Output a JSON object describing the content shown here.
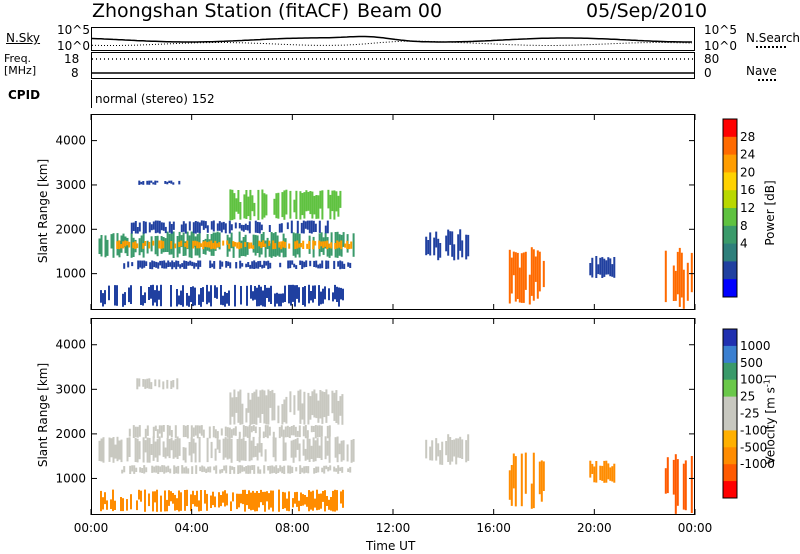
{
  "header": {
    "station": "Zhongshan Station (fitACF)",
    "beam": "Beam 00",
    "date": "05/Sep/2010"
  },
  "top_panel": {
    "left_label": "N.Sky",
    "right_label": "N.Search",
    "y_ticks_left": [
      "10^5",
      "10^0"
    ],
    "y_ticks_right": [
      "10^5",
      "10^0"
    ]
  },
  "freq_panel": {
    "left_label_line1": "Freq.",
    "left_label_line2": "[MHz]",
    "right_label": "Nave",
    "y_ticks_left": [
      "18",
      "8"
    ],
    "y_ticks_right": [
      "80",
      "0"
    ]
  },
  "cpid_panel": {
    "label": "CPID",
    "text": "normal (stereo) 152"
  },
  "chart_data": [
    {
      "type": "heatmap",
      "name": "Power",
      "ylabel": "Slant Range [km]",
      "y_ticks": [
        "4000",
        "3000",
        "2000",
        "1000"
      ],
      "y_tick_values": [
        4000,
        3000,
        2000,
        1000
      ],
      "ylim": [
        180,
        4600
      ],
      "xlim": [
        0,
        24
      ],
      "colorbar_label": "Power [dB]",
      "colorbar_ticks": [
        "28",
        "24",
        "20",
        "16",
        "12",
        "8",
        "4"
      ],
      "colorbar_colors": [
        "#ff0000",
        "#ff6a00",
        "#ff9d00",
        "#ffd200",
        "#b9d800",
        "#5fc240",
        "#3a9a6a",
        "#2e7f7b",
        "#2040a0",
        "#0000ff"
      ],
      "regions": [
        {
          "t0": 0.3,
          "t1": 10.4,
          "r0": 1350,
          "r1": 1950,
          "color": "#3a9a6a"
        },
        {
          "t0": 1.0,
          "t1": 10.3,
          "r0": 1550,
          "r1": 1750,
          "color": "#ff9d00"
        },
        {
          "t0": 1.5,
          "t1": 9.5,
          "r0": 1900,
          "r1": 2200,
          "color": "#2040a0"
        },
        {
          "t0": 1.8,
          "t1": 3.5,
          "r0": 3000,
          "r1": 3100,
          "color": "#2040a0"
        },
        {
          "t0": 5.5,
          "t1": 10.0,
          "r0": 2200,
          "r1": 2900,
          "color": "#5fc240"
        },
        {
          "t0": 1.2,
          "t1": 10.3,
          "r0": 1100,
          "r1": 1300,
          "color": "#2040a0"
        },
        {
          "t0": 13.2,
          "t1": 15.0,
          "r0": 1300,
          "r1": 2000,
          "color": "#2040a0"
        },
        {
          "t0": 16.6,
          "t1": 18.0,
          "r0": 300,
          "r1": 1600,
          "color": "#ff6a00"
        },
        {
          "t0": 19.8,
          "t1": 20.8,
          "r0": 900,
          "r1": 1400,
          "color": "#2040a0"
        },
        {
          "t0": 22.8,
          "t1": 23.9,
          "r0": 200,
          "r1": 1600,
          "color": "#ff6a00"
        },
        {
          "t0": 0.2,
          "t1": 10.0,
          "r0": 250,
          "r1": 750,
          "color": "#2040a0"
        }
      ]
    },
    {
      "type": "heatmap",
      "name": "Velocity",
      "ylabel": "Slant Range [km]",
      "y_ticks": [
        "4000",
        "3000",
        "2000",
        "1000"
      ],
      "y_tick_values": [
        4000,
        3000,
        2000,
        1000
      ],
      "ylim": [
        180,
        4600
      ],
      "xlim": [
        0,
        24
      ],
      "xlabel": "Time UT",
      "x_ticks": [
        "00:00",
        "04:00",
        "08:00",
        "12:00",
        "16:00",
        "20:00",
        "00:00"
      ],
      "x_tick_values": [
        0,
        4,
        8,
        12,
        16,
        20,
        24
      ],
      "colorbar_label": "Velocity [m s",
      "colorbar_label_sup": "-1",
      "colorbar_label_end": "]",
      "colorbar_ticks": [
        "1000",
        "500",
        "100",
        "25",
        "-25",
        "-100",
        "-500",
        "-1000"
      ],
      "colorbar_colors": [
        "#2030b0",
        "#3a7fd0",
        "#3a9a6a",
        "#6ac84a",
        "#c8c8c0",
        "#c8c8c0",
        "#ffb000",
        "#ff8c00",
        "#ff5a00",
        "#ff0000"
      ],
      "regions": [
        {
          "t0": 0.3,
          "t1": 10.4,
          "r0": 1350,
          "r1": 1950,
          "color": "#c8c8c0"
        },
        {
          "t0": 1.5,
          "t1": 9.5,
          "r0": 1900,
          "r1": 2200,
          "color": "#c8c8c0"
        },
        {
          "t0": 1.8,
          "t1": 3.5,
          "r0": 3000,
          "r1": 3250,
          "color": "#c8c8c0"
        },
        {
          "t0": 5.5,
          "t1": 10.0,
          "r0": 2200,
          "r1": 3000,
          "color": "#c8c8c0"
        },
        {
          "t0": 1.2,
          "t1": 10.3,
          "r0": 1100,
          "r1": 1300,
          "color": "#c8c8c0"
        },
        {
          "t0": 13.2,
          "t1": 15.0,
          "r0": 1300,
          "r1": 2000,
          "color": "#c8c8c0"
        },
        {
          "t0": 16.6,
          "t1": 18.0,
          "r0": 300,
          "r1": 1600,
          "color": "#ff8c00"
        },
        {
          "t0": 19.8,
          "t1": 20.8,
          "r0": 900,
          "r1": 1400,
          "color": "#ff8c00"
        },
        {
          "t0": 22.8,
          "t1": 23.9,
          "r0": 200,
          "r1": 1600,
          "color": "#ff5a00"
        },
        {
          "t0": 0.2,
          "t1": 10.0,
          "r0": 250,
          "r1": 750,
          "color": "#ff8c00"
        }
      ]
    }
  ]
}
